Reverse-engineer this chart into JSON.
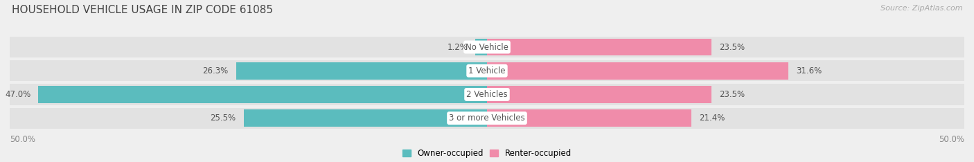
{
  "title": "HOUSEHOLD VEHICLE USAGE IN ZIP CODE 61085",
  "source": "Source: ZipAtlas.com",
  "categories": [
    "3 or more Vehicles",
    "2 Vehicles",
    "1 Vehicle",
    "No Vehicle"
  ],
  "owner_values": [
    25.5,
    47.0,
    26.3,
    1.2
  ],
  "renter_values": [
    21.4,
    23.5,
    31.6,
    23.5
  ],
  "owner_color": "#5bbcbe",
  "renter_color": "#f08caa",
  "owner_label": "Owner-occupied",
  "renter_label": "Renter-occupied",
  "axis_label_left": "50.0%",
  "axis_label_right": "50.0%",
  "xlim": [
    -50,
    50
  ],
  "background_color": "#efefef",
  "bar_bg_color": "#e2e2e2",
  "title_fontsize": 11,
  "source_fontsize": 8,
  "label_fontsize": 8.5,
  "category_fontsize": 8.5
}
